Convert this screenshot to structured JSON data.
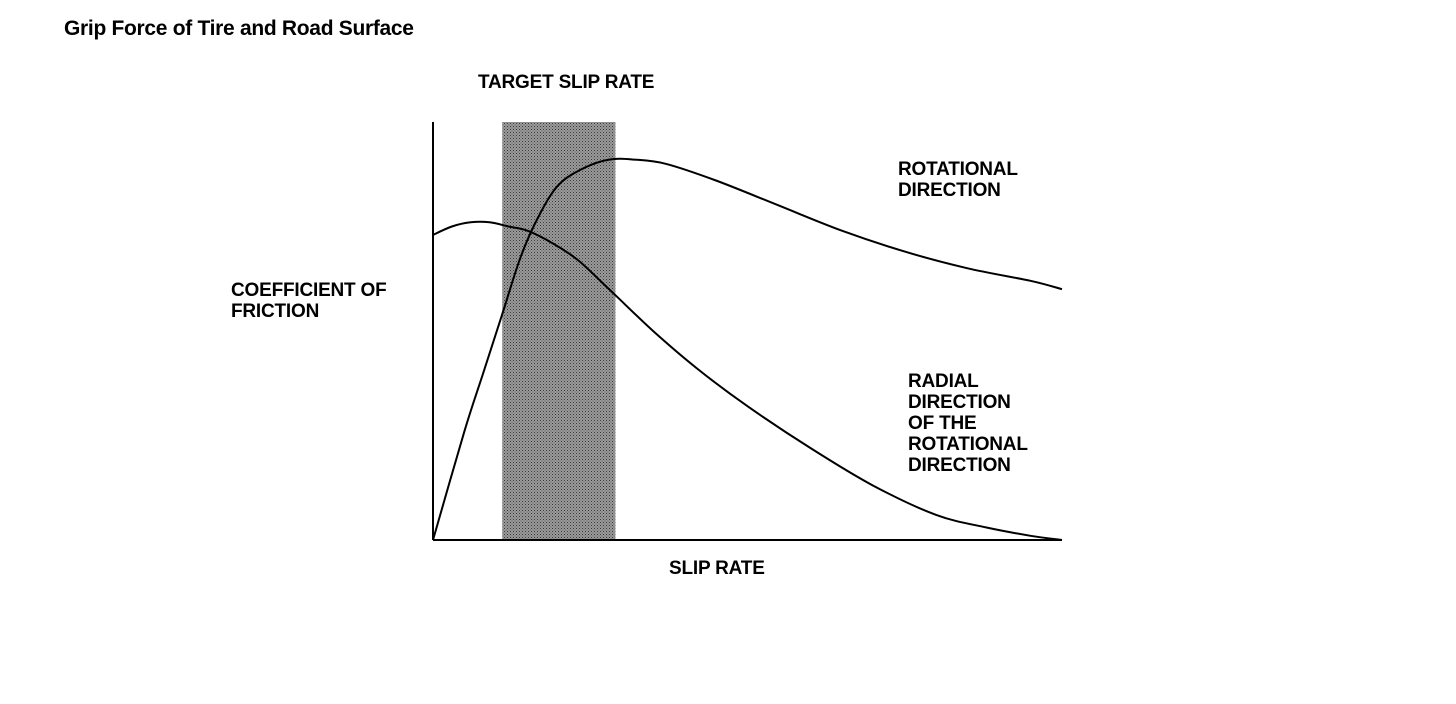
{
  "title": "Grip Force of Tire and Road Surface",
  "chart_data": {
    "type": "line",
    "title": "Grip Force of Tire and Road Surface",
    "xlabel": "SLIP RATE",
    "ylabel_lines": [
      "COEFFICIENT OF",
      "FRICTION"
    ],
    "xlim": [
      0,
      100
    ],
    "ylim": [
      0,
      100
    ],
    "grid": false,
    "highlight_band": {
      "label": "TARGET SLIP RATE",
      "x_range": [
        11,
        29
      ]
    },
    "series": [
      {
        "name_lines": [
          "ROTATIONAL",
          "DIRECTION"
        ],
        "x": [
          0,
          5,
          8,
          11,
          14,
          17,
          20,
          24,
          28,
          32,
          37,
          45,
          55,
          65,
          75,
          85,
          95,
          100
        ],
        "values": [
          0,
          26,
          40,
          54,
          68,
          78,
          85,
          89,
          91,
          91,
          90,
          86,
          80,
          74,
          69,
          65,
          62,
          60
        ]
      },
      {
        "name_lines": [
          "RADIAL",
          "DIRECTION",
          "OF THE",
          "ROTATIONAL",
          "DIRECTION"
        ],
        "x": [
          0,
          3,
          6,
          9,
          12,
          15,
          19,
          23,
          28,
          35,
          42,
          50,
          60,
          70,
          80,
          88,
          95,
          100
        ],
        "values": [
          73,
          75,
          76,
          76,
          75,
          74,
          71,
          67,
          60,
          50,
          41,
          32,
          22,
          13,
          6,
          3,
          1,
          0
        ]
      }
    ]
  }
}
